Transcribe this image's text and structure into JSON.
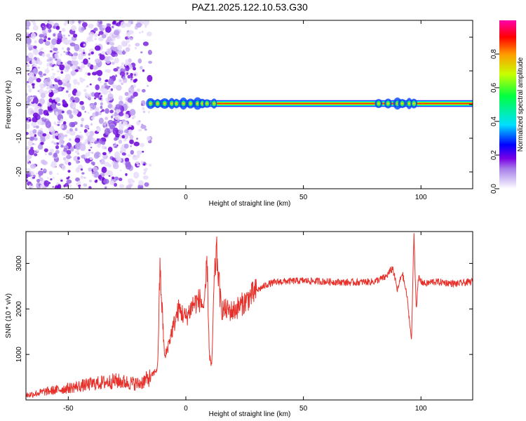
{
  "title": "PAZ1.2025.122.10.53.G30",
  "chart_data": [
    {
      "type": "heatmap",
      "panel": "spectrogram",
      "xlabel": "Height of straight line (km)",
      "ylabel": "Frequency (Hz)",
      "xlim": [
        -68,
        122
      ],
      "ylim": [
        -25,
        25
      ],
      "x_ticks": [
        -50,
        0,
        50,
        100
      ],
      "y_ticks": [
        -20,
        -10,
        0,
        10,
        20
      ],
      "noise_region_x": [
        -68,
        -15
      ],
      "signal_band": {
        "x_start": -16,
        "x_end": 122,
        "frequency_hz": 0.3
      },
      "colorbar": {
        "label": "Normalized spectral amplitude",
        "range": [
          0,
          1
        ],
        "ticks": [
          0.0,
          0.2,
          0.4,
          0.6,
          0.8
        ],
        "colormap": [
          "#ffffff",
          "#b59cf0",
          "#7a00e6",
          "#0000ff",
          "#00e0ff",
          "#00ff40",
          "#c8ff00",
          "#ff9900",
          "#ff0000",
          "#ff00aa"
        ]
      }
    },
    {
      "type": "line",
      "panel": "snr",
      "xlabel": "Height of straight line (km)",
      "ylabel": "SNR (10 * v/v)",
      "xlim": [
        -68,
        122
      ],
      "ylim": [
        0,
        3700
      ],
      "x_ticks": [
        -50,
        0,
        50,
        100
      ],
      "y_ticks": [
        1000,
        2000,
        3000
      ],
      "color": "#e8302a",
      "series": [
        {
          "x": [
            -68,
            -60,
            -50,
            -40,
            -30,
            -20,
            -15,
            -12,
            -11,
            -9,
            -6,
            -3,
            0,
            3,
            6,
            8,
            9,
            10,
            11,
            12,
            13,
            15,
            20,
            25,
            30,
            35,
            40,
            50,
            60,
            70,
            80,
            85,
            88,
            90,
            92,
            94,
            96,
            97,
            98,
            99,
            100,
            102,
            105,
            110,
            115,
            122
          ],
          "y": [
            100,
            180,
            260,
            350,
            420,
            350,
            500,
            700,
            2900,
            900,
            1500,
            2000,
            1800,
            2100,
            2200,
            2000,
            3100,
            1000,
            700,
            2500,
            3300,
            2000,
            1950,
            2150,
            2400,
            2550,
            2600,
            2620,
            2600,
            2580,
            2600,
            2700,
            2900,
            2400,
            2800,
            2300,
            1300,
            3700,
            2000,
            2700,
            2600,
            2550,
            2600,
            2580,
            2550,
            2600
          ]
        }
      ]
    }
  ]
}
